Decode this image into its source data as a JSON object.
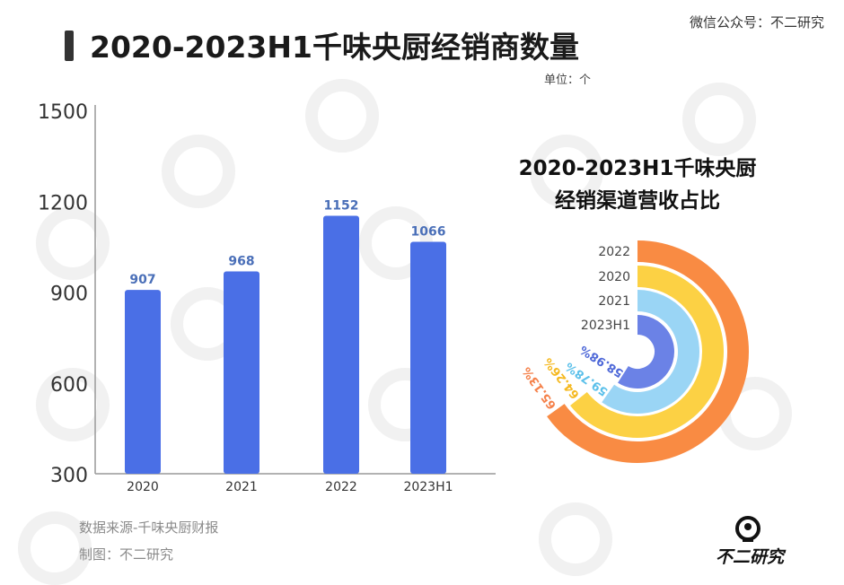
{
  "title": "2020-2023H1千味央厨经销商数量",
  "wechat": "微信公众号：不二研究",
  "unit": "单位：个",
  "source": "数据来源-千味央厨财报",
  "maker": "制图：不二研究",
  "logo_text": "不二研究",
  "chart_data": [
    {
      "type": "bar",
      "title": "2020-2023H1千味央厨经销商数量",
      "categories": [
        "2020",
        "2021",
        "2022",
        "2023H1"
      ],
      "values": [
        907,
        968,
        1152,
        1066
      ],
      "value_labels": [
        "907",
        "968",
        "1152",
        "1066"
      ],
      "y_ticks": [
        "1500",
        "1200",
        "900",
        "600",
        "300"
      ],
      "ylim": [
        300,
        1500
      ],
      "color": "#4a6fe6",
      "label_color": "#4a6fb8",
      "grid": false
    },
    {
      "type": "pie",
      "subtype": "radial-bar",
      "title": "2020-2023H1千味央厨经销渠道营收占比",
      "title_lines": [
        "2020-2023H1千味央厨",
        "经销渠道营收占比"
      ],
      "categories": [
        "2022",
        "2020",
        "2021",
        "2023H1"
      ],
      "values": [
        65.13,
        64.26,
        59.78,
        58.98
      ],
      "value_labels": [
        "65.13%",
        "64.26%",
        "59.78%",
        "58.98%"
      ],
      "colors": [
        "#f98b43",
        "#fcd144",
        "#9ad5f5",
        "#6b82e6"
      ],
      "label_colors": [
        "#f5814a",
        "#f5b921",
        "#5bc0ea",
        "#4e68d8"
      ]
    }
  ]
}
